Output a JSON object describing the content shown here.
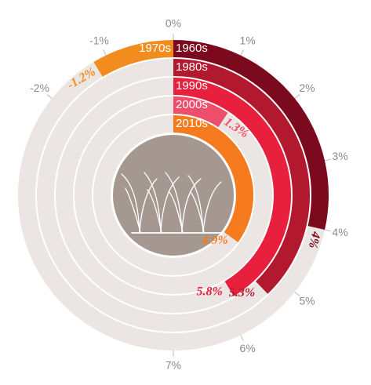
{
  "chart_data": {
    "type": "radial_bar",
    "categories": [
      "1960s",
      "1970s",
      "1980s",
      "1990s",
      "2000s",
      "2010s"
    ],
    "values": [
      4,
      -1.2,
      5.3,
      5.8,
      1.3,
      4.9
    ],
    "value_labels": [
      "4%",
      "-1.2%",
      "5.3%",
      "5.8%",
      "1.3%",
      "4.9%"
    ],
    "colors": [
      "#7b0a1f",
      "#f28c1e",
      "#b3192e",
      "#e8203d",
      "#ee4d6c",
      "#f57b1e"
    ],
    "track_color": "#ebe6e3",
    "xlim": [
      -7,
      7
    ],
    "xticks": [
      {
        "value": -2,
        "label": "-2%"
      },
      {
        "value": -1,
        "label": "-1%"
      },
      {
        "value": 0,
        "label": "0%"
      },
      {
        "value": 1,
        "label": "1%"
      },
      {
        "value": 2,
        "label": "2%"
      },
      {
        "value": 3,
        "label": "3%"
      },
      {
        "value": 4,
        "label": "4%"
      },
      {
        "value": 5,
        "label": "5%"
      },
      {
        "value": 6,
        "label": "6%"
      },
      {
        "value": 7,
        "label": "7%"
      }
    ]
  }
}
